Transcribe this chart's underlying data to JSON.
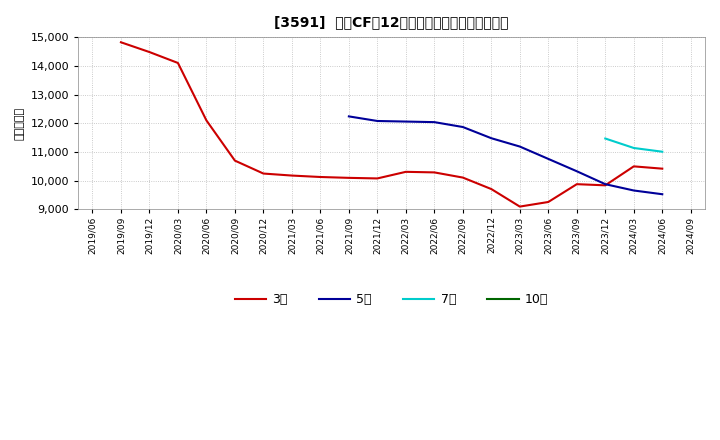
{
  "title": "[3591]  営業CFの12か月移動合計の平均値の推移",
  "ylabel": "（百万円）",
  "ylim": [
    9000,
    15000
  ],
  "yticks": [
    9000,
    10000,
    11000,
    12000,
    13000,
    14000,
    15000
  ],
  "background_color": "#ffffff",
  "plot_bg_color": "#ffffff",
  "grid_color": "#bbbbbb",
  "xtick_labels": [
    "2019/06",
    "2019/09",
    "2019/12",
    "2020/03",
    "2020/06",
    "2020/09",
    "2020/12",
    "2021/03",
    "2021/06",
    "2021/09",
    "2021/12",
    "2022/03",
    "2022/06",
    "2022/09",
    "2022/12",
    "2023/03",
    "2023/06",
    "2023/09",
    "2023/12",
    "2024/03",
    "2024/06",
    "2024/09"
  ],
  "series_3y": {
    "label": "3年",
    "color": "#cc0000",
    "x": [
      "2019/09",
      "2019/12",
      "2020/03",
      "2020/06",
      "2020/09",
      "2020/12",
      "2021/03",
      "2021/06",
      "2021/09",
      "2021/12",
      "2022/03",
      "2022/06",
      "2022/09",
      "2022/12",
      "2023/03",
      "2023/06",
      "2023/09",
      "2023/12",
      "2024/03",
      "2024/06"
    ],
    "y": [
      14820,
      14480,
      14100,
      12100,
      10700,
      10250,
      10180,
      10130,
      10100,
      10080,
      10310,
      10290,
      10110,
      9710,
      9100,
      9260,
      9880,
      9840,
      10500,
      10420
    ]
  },
  "series_5y": {
    "label": "5年",
    "color": "#000099",
    "x": [
      "2021/09",
      "2021/12",
      "2022/03",
      "2022/06",
      "2022/09",
      "2022/12",
      "2023/03",
      "2023/06",
      "2023/09",
      "2023/12",
      "2024/03",
      "2024/06"
    ],
    "y": [
      12240,
      12080,
      12060,
      12040,
      11870,
      11480,
      11190,
      10760,
      10330,
      9880,
      9660,
      9530
    ]
  },
  "series_7y": {
    "label": "7年",
    "color": "#00cccc",
    "x": [
      "2023/12",
      "2024/03",
      "2024/06"
    ],
    "y": [
      11470,
      11140,
      11010
    ]
  },
  "series_10y": {
    "label": "10年",
    "color": "#006600",
    "x": [],
    "y": []
  }
}
